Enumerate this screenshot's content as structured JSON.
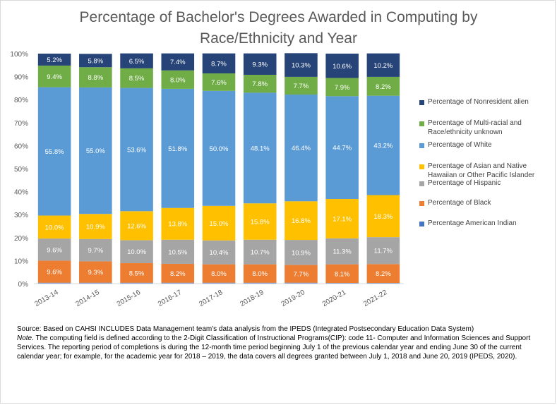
{
  "chart_data": {
    "type": "bar",
    "stacked": true,
    "title": "Percentage of Bachelor's Degrees Awarded in Computing by Race/Ethnicity and Year",
    "categories": [
      "2013-14",
      "2014-15",
      "2015-16",
      "2016-17",
      "2017-18",
      "2018-19",
      "2019-20",
      "2020-21",
      "2021-22"
    ],
    "ylim": [
      0,
      100
    ],
    "yticks": [
      "0%",
      "10%",
      "20%",
      "30%",
      "40%",
      "50%",
      "60%",
      "70%",
      "80%",
      "90%",
      "100%"
    ],
    "legend_position": "right",
    "series": [
      {
        "name": "Percentage American Indian",
        "color": "#4472c4",
        "values": [
          0.4,
          0.4,
          0.4,
          0.4,
          0.4,
          0.4,
          0.4,
          0.3,
          0.3
        ],
        "labels": [
          "",
          "",
          "",
          "",
          "",
          "",
          "",
          "",
          ""
        ]
      },
      {
        "name": "Percentage of Black",
        "color": "#ed7d31",
        "values": [
          9.6,
          9.3,
          8.5,
          8.2,
          8.0,
          8.0,
          7.7,
          8.1,
          8.2
        ],
        "labels": [
          "9.6%",
          "9.3%",
          "8.5%",
          "8.2%",
          "8.0%",
          "8.0%",
          "7.7%",
          "8.1%",
          "8.2%"
        ]
      },
      {
        "name": "Percentage of Hispanic",
        "color": "#a5a5a5",
        "values": [
          9.6,
          9.7,
          10.0,
          10.5,
          10.4,
          10.7,
          10.9,
          11.3,
          11.7
        ],
        "labels": [
          "9.6%",
          "9.7%",
          "10.0%",
          "10.5%",
          "10.4%",
          "10.7%",
          "10.9%",
          "11.3%",
          "11.7%"
        ]
      },
      {
        "name": "Percentage of Asian and Native Hawaiian or Other Pacific Islander",
        "color": "#ffc000",
        "values": [
          10.0,
          10.9,
          12.6,
          13.8,
          15.0,
          15.8,
          16.8,
          17.1,
          18.3
        ],
        "labels": [
          "10.0%",
          "10.9%",
          "12.6%",
          "13.8%",
          "15.0%",
          "15.8%",
          "16.8%",
          "17.1%",
          "18.3%"
        ]
      },
      {
        "name": "Percentage of White",
        "color": "#5b9bd5",
        "values": [
          55.8,
          55.0,
          53.6,
          51.8,
          50.0,
          48.1,
          46.4,
          44.7,
          43.2
        ],
        "labels": [
          "55.8%",
          "55.0%",
          "53.6%",
          "51.8%",
          "50.0%",
          "48.1%",
          "46.4%",
          "44.7%",
          "43.2%"
        ]
      },
      {
        "name": "Percentage of Multi-racial and Race/ethnicity unknown",
        "color": "#70ad47",
        "values": [
          9.4,
          8.8,
          8.5,
          8.0,
          7.6,
          7.8,
          7.7,
          7.9,
          8.2
        ],
        "labels": [
          "9.4%",
          "8.8%",
          "8.5%",
          "8.0%",
          "7.6%",
          "7.8%",
          "7.7%",
          "7.9%",
          "8.2%"
        ]
      },
      {
        "name": "Percentage of Nonresident alien",
        "color": "#264478",
        "values": [
          5.2,
          5.8,
          6.5,
          7.4,
          8.7,
          9.3,
          10.3,
          10.6,
          10.2
        ],
        "labels": [
          "5.2%",
          "5.8%",
          "6.5%",
          "7.4%",
          "8.7%",
          "9.3%",
          "10.3%",
          "10.6%",
          "10.2%"
        ]
      }
    ],
    "legend": [
      {
        "label": "Percentage of Nonresident alien",
        "color": "#264478"
      },
      {
        "label": "Percentage of Multi-racial and\nRace/ethnicity unknown",
        "color": "#70ad47"
      },
      {
        "label": "Percentage of White",
        "color": "#5b9bd5"
      },
      {
        "label": "Percentage of Asian and Native\nHawaiian or Other Pacific Islander",
        "color": "#ffc000"
      },
      {
        "label": "Percentage of Hispanic",
        "color": "#a5a5a5"
      },
      {
        "label": "Percentage of Black",
        "color": "#ed7d31"
      },
      {
        "label": "Percentage American Indian",
        "color": "#4472c4"
      }
    ]
  },
  "title_line1": "Percentage of Bachelor's Degrees Awarded in Computing by",
  "title_line2": "Race/Ethnicity and Year",
  "source_text": "Source: Based on CAHSI INCLUDES Data Management team's data analysis from the IPEDS (Integrated Postsecondary Education Data System)",
  "note_label": "Note",
  "note_text": ". The computing field is defined according to the 2-Digit Classification of Instructional Programs(CIP): code 11- Computer and Information Sciences and Support Services. The reporting period of completions is during the 12-month time period beginning July 1 of the previous calendar year and ending June 30 of the current calendar year; for example, for the academic year for 2018 – 2019, the data covers all degrees granted between July 1, 2018 and June 20, 2019 (IPEDS, 2020)."
}
